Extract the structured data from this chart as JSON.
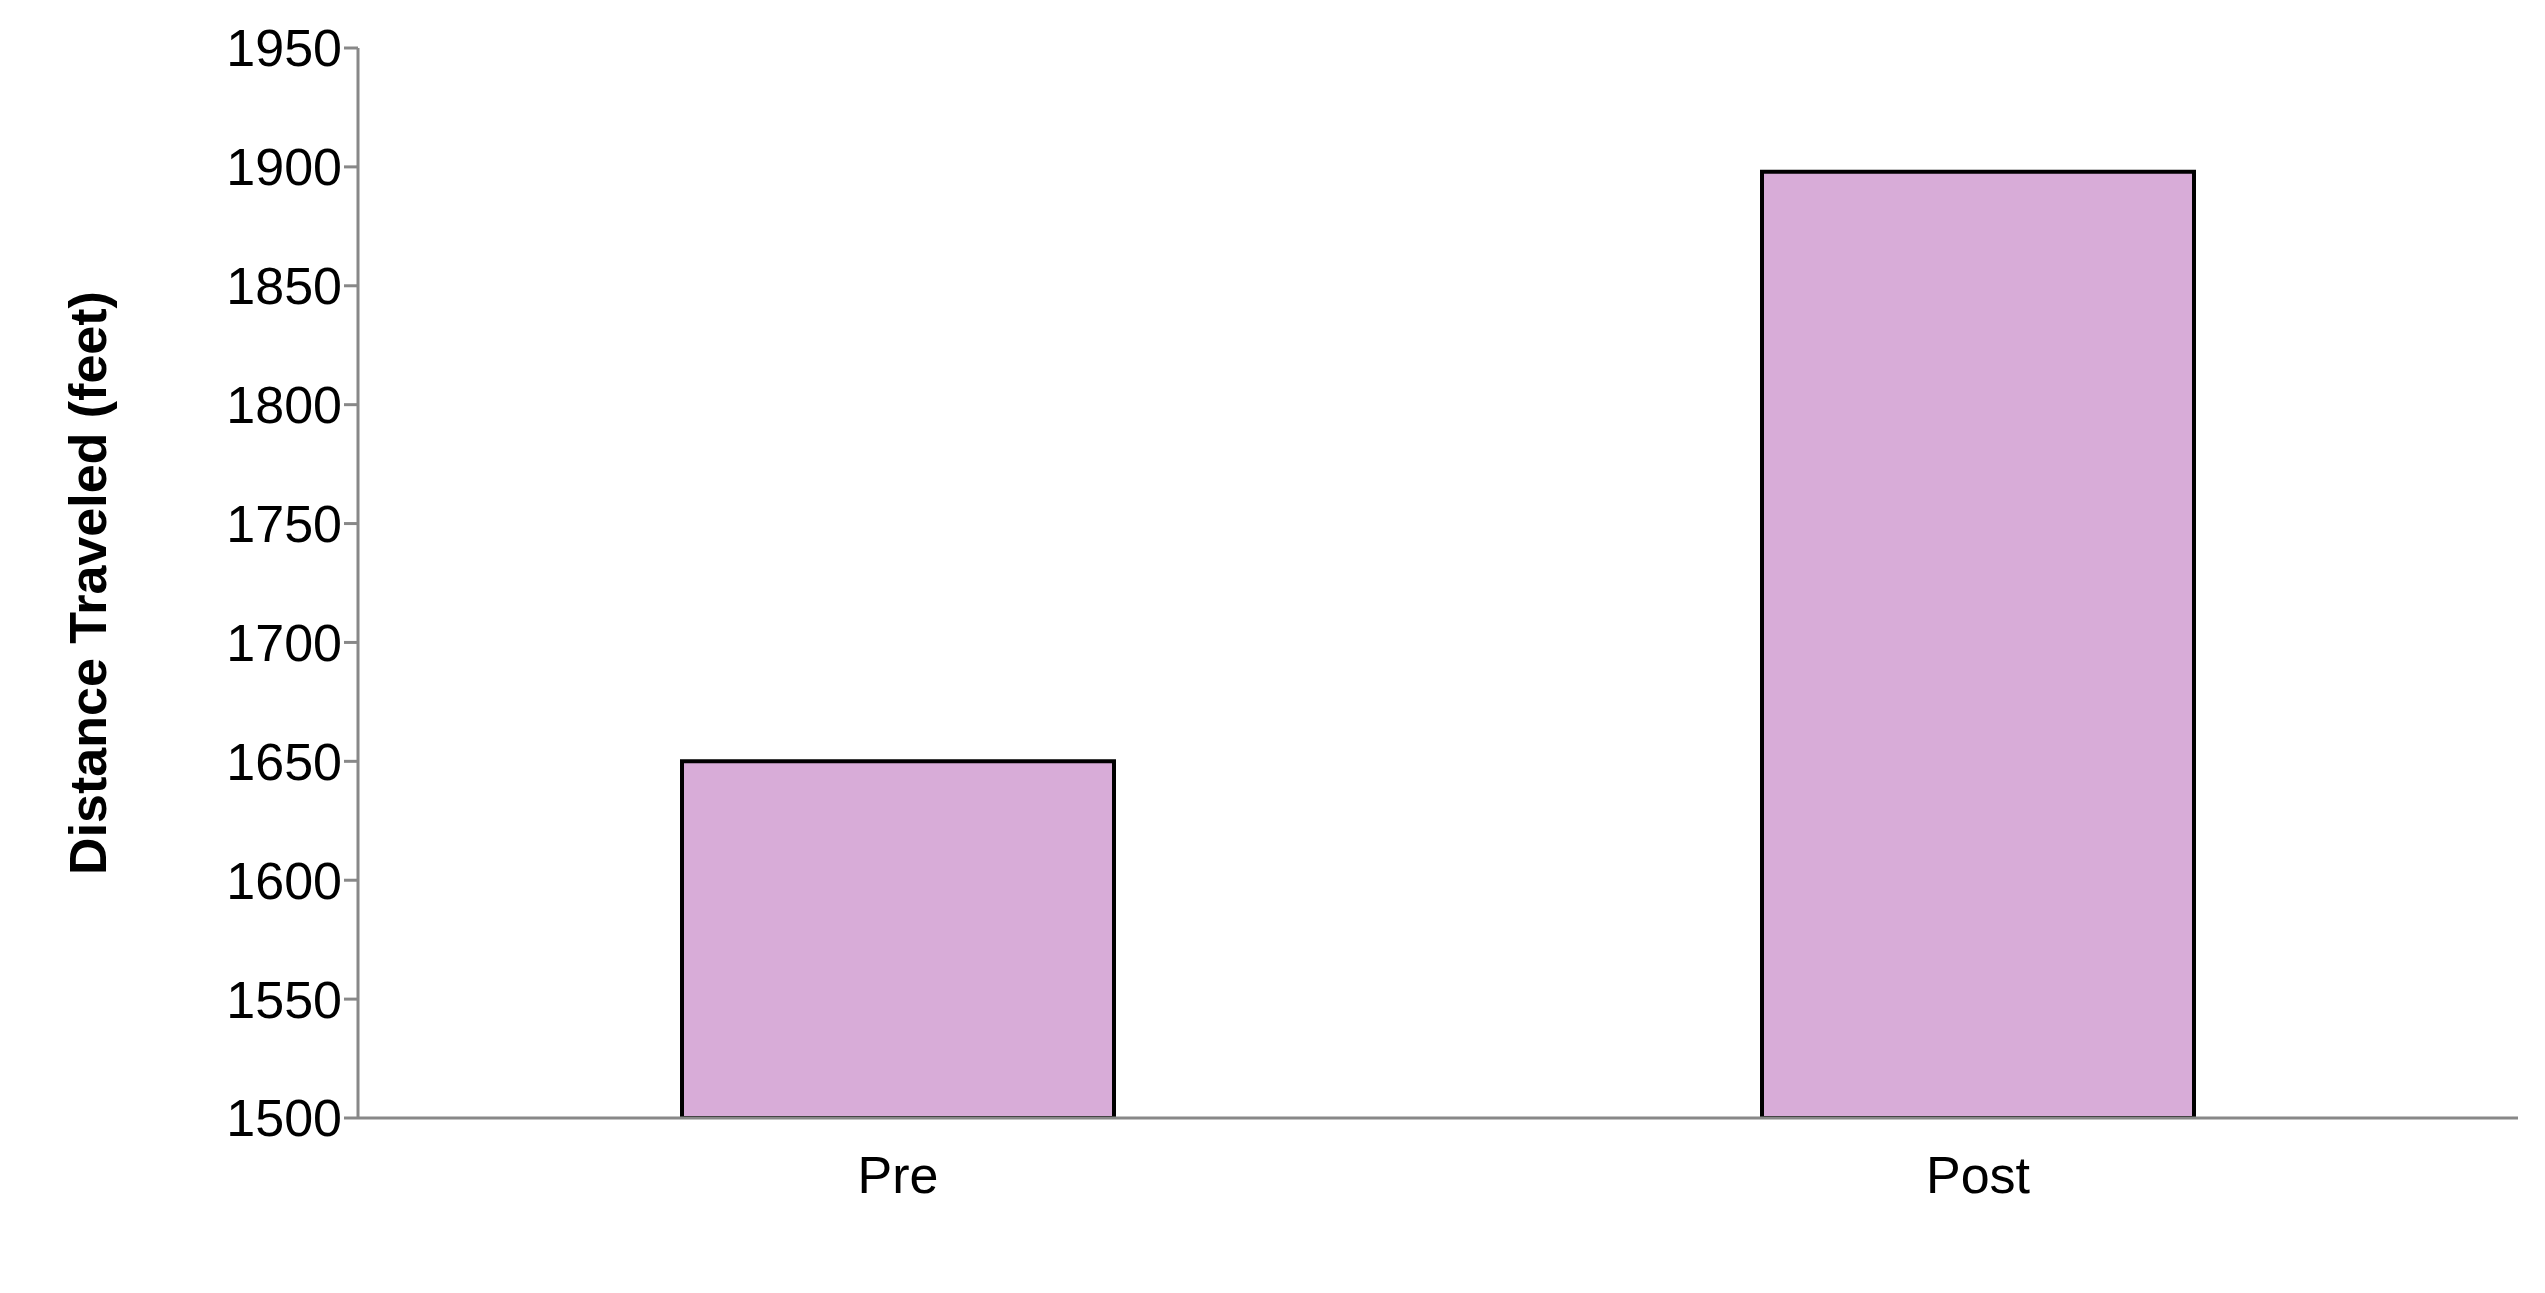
{
  "chart_data": {
    "type": "bar",
    "ylabel": "Distance Traveled (feet)",
    "categories": [
      "Pre",
      "Post"
    ],
    "values": [
      1650,
      1898
    ],
    "color": "#d8acd8",
    "ylim": [
      1500,
      1950
    ],
    "yticks": [
      1500,
      1550,
      1600,
      1650,
      1700,
      1750,
      1800,
      1850,
      1900,
      1950
    ],
    "grid": false
  }
}
